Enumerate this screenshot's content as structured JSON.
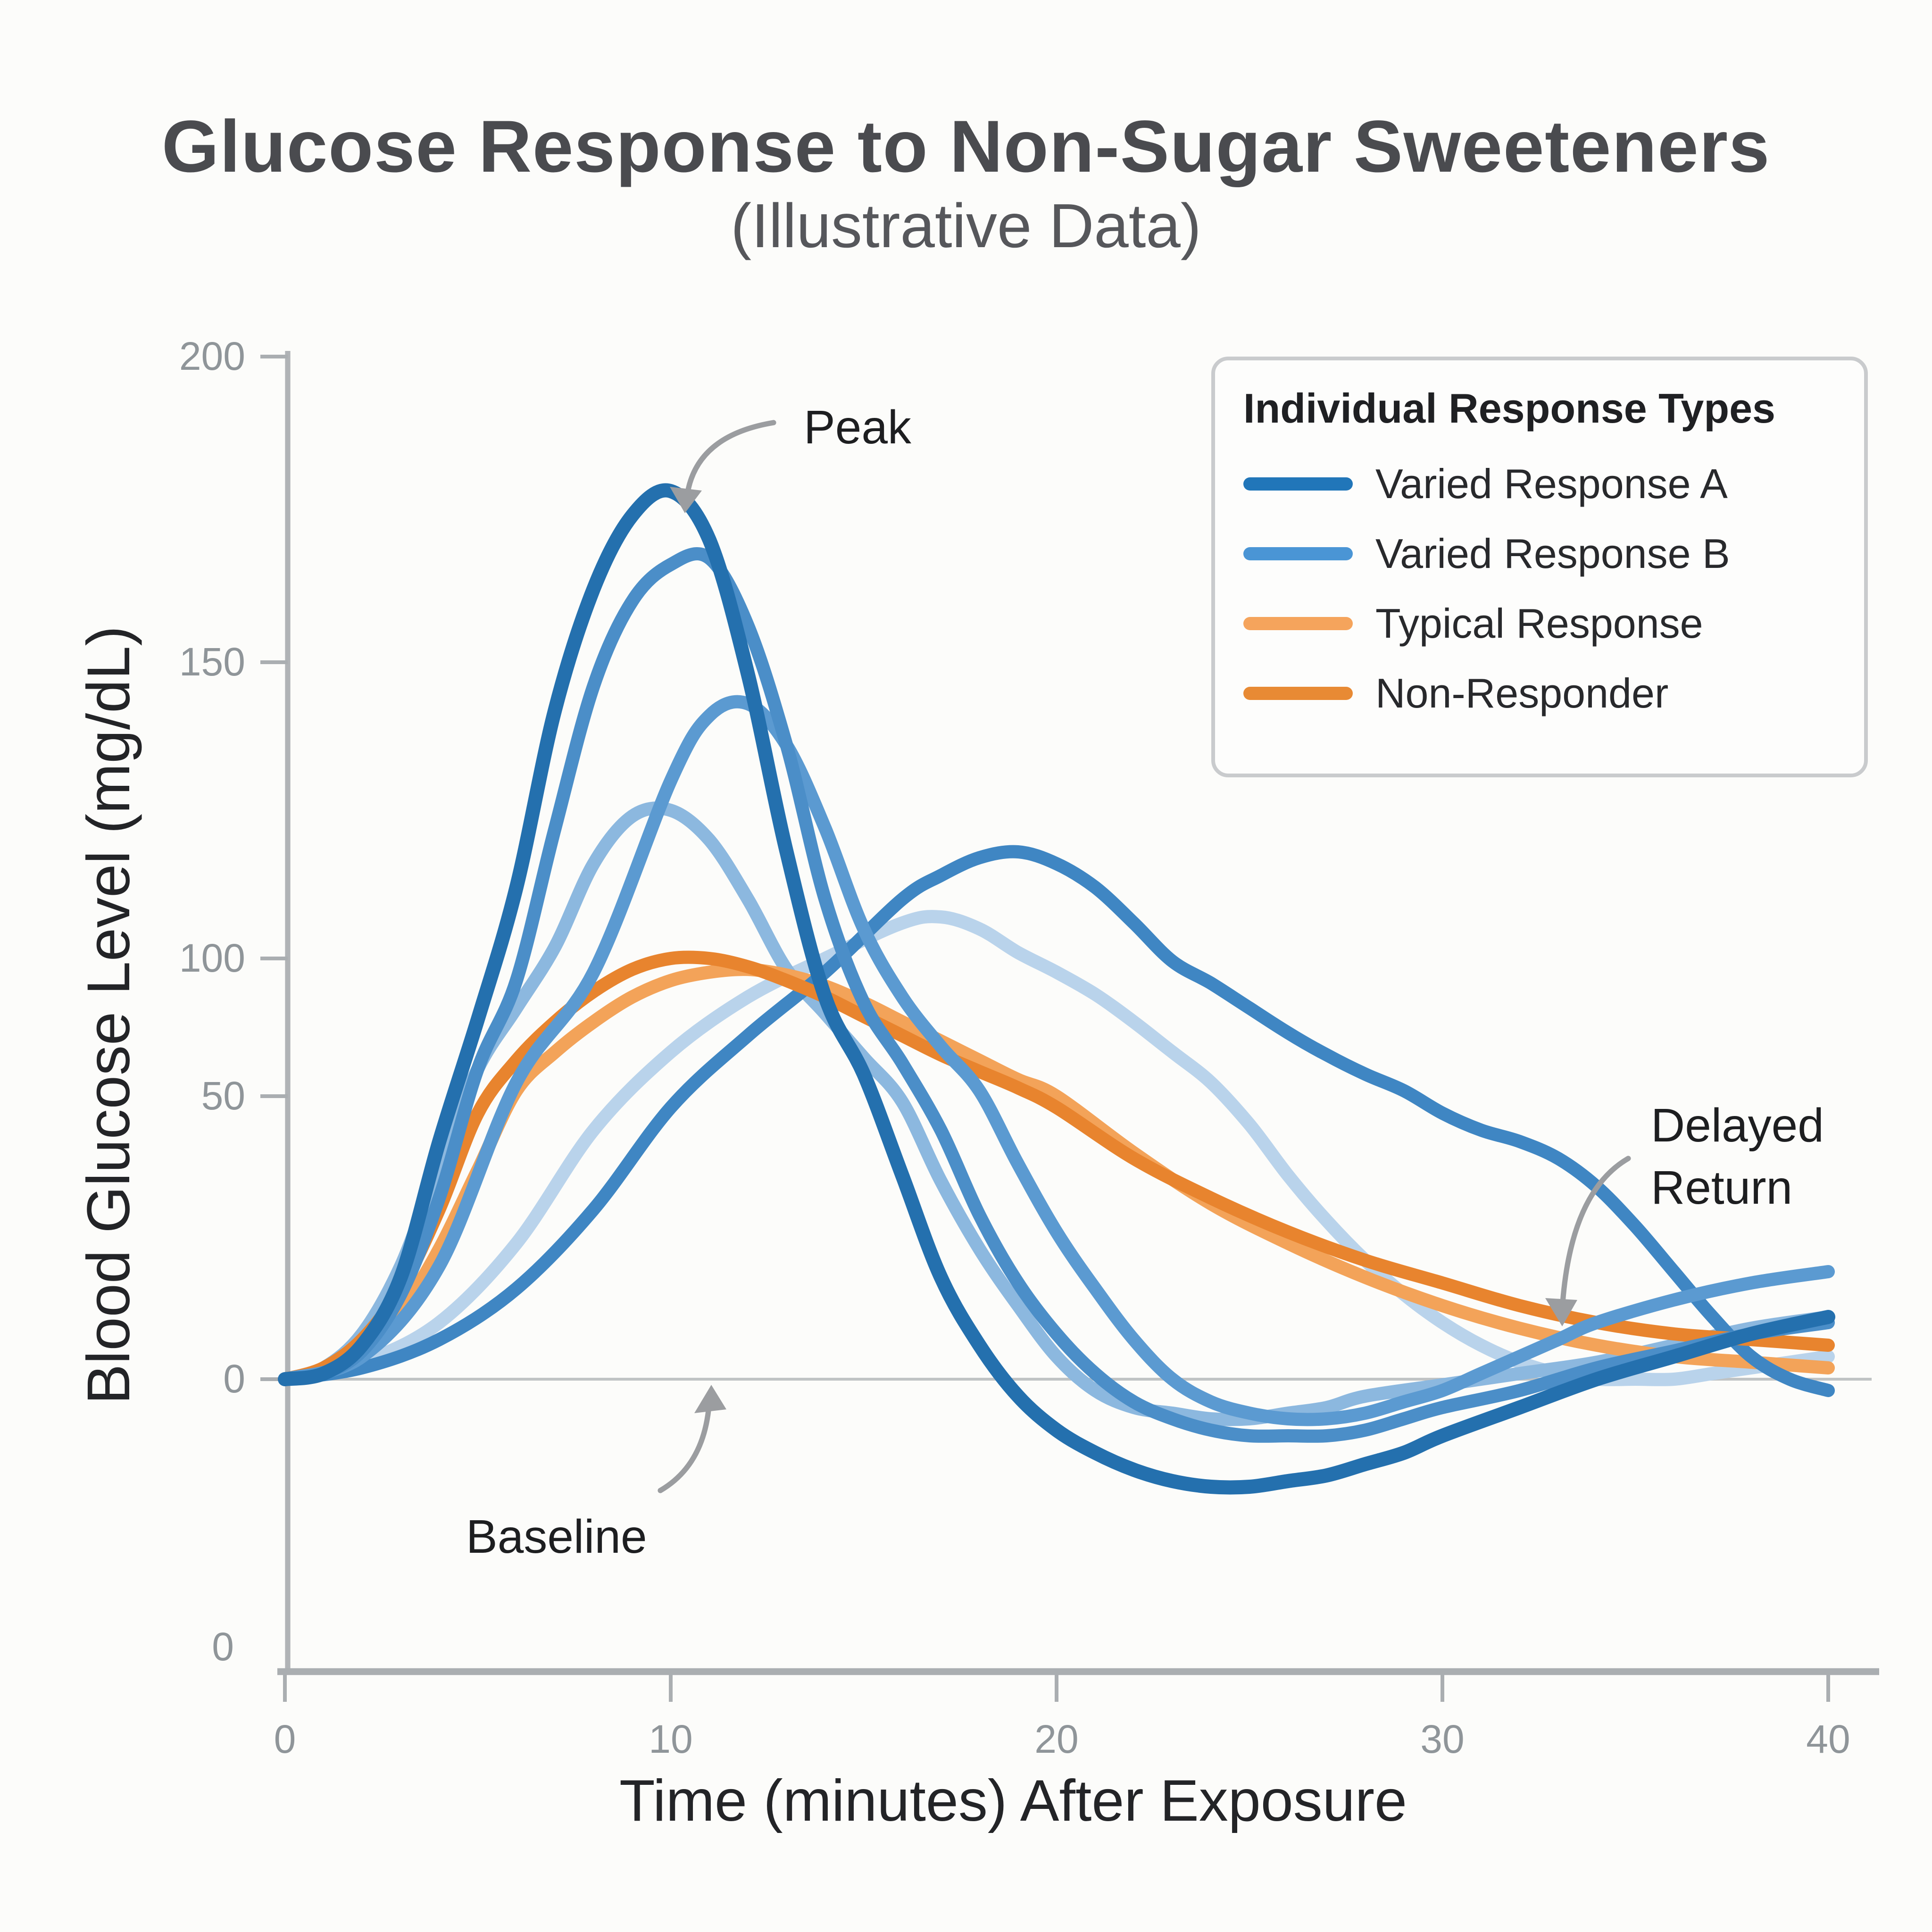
{
  "title": "Glucose Response to Non-Sugar Sweeteners",
  "subtitle": "(Illustrative Data)",
  "axes": {
    "x_label": "Time (minutes) After Exposure",
    "y_label": "Blood Glucose Level (mg/dL)",
    "x_ticks": [
      0,
      10,
      20,
      30,
      40
    ],
    "y_ticks": [
      200,
      150,
      100,
      50,
      0
    ],
    "origin_label": "0"
  },
  "legend": {
    "title": "Individual Response Types",
    "entries": [
      {
        "label": "Varied Response A",
        "color": "#2176b9"
      },
      {
        "label": "Varied Response B",
        "color": "#4a95d5"
      },
      {
        "label": "Typical Response",
        "color": "#f5a45c"
      },
      {
        "label": "Non-Responder",
        "color": "#e88a34"
      }
    ]
  },
  "annotations": {
    "peak": "Peak",
    "baseline": "Baseline",
    "delayed_return": "Delayed Return"
  },
  "chart_data": {
    "type": "line",
    "title": "Glucose Response to Non-Sugar Sweeteners",
    "subtitle": "(Illustrative Data)",
    "xlabel": "Time (minutes) After Exposure",
    "ylabel": "Blood Glucose Level (mg/dL)",
    "x_range": [
      0,
      40
    ],
    "x_ticks": [
      0,
      10,
      20,
      30,
      40
    ],
    "y_ticks": [
      200,
      150,
      100,
      50,
      0
    ],
    "baseline_value": 0,
    "grid": false,
    "legend_position": "top-right",
    "series": [
      {
        "name": "Varied Response B - delayed light curve",
        "legend_group": "Varied Response B",
        "color": "#b9d3eb",
        "width": 7,
        "points": [
          [
            0,
            0
          ],
          [
            2,
            3
          ],
          [
            4,
            10
          ],
          [
            6,
            24
          ],
          [
            8,
            44
          ],
          [
            10,
            66
          ],
          [
            12,
            86
          ],
          [
            14,
            100
          ],
          [
            16,
            106
          ],
          [
            17,
            107
          ],
          [
            18,
            105
          ],
          [
            19,
            101
          ],
          [
            20,
            95
          ],
          [
            21,
            87
          ],
          [
            22,
            77
          ],
          [
            23,
            66
          ],
          [
            24,
            55
          ],
          [
            25,
            45
          ],
          [
            26,
            36
          ],
          [
            27,
            28
          ],
          [
            28,
            21
          ],
          [
            29,
            15
          ],
          [
            30,
            10
          ],
          [
            31,
            6
          ],
          [
            32,
            3
          ],
          [
            33,
            1
          ],
          [
            34,
            0
          ],
          [
            35,
            0
          ],
          [
            36,
            0
          ],
          [
            37,
            1
          ],
          [
            38,
            2
          ],
          [
            39,
            3
          ],
          [
            40,
            4
          ]
        ]
      },
      {
        "name": "Varied Response B - light curve",
        "legend_group": "Varied Response B",
        "color": "#8cb8df",
        "width": 7,
        "points": [
          [
            0,
            0
          ],
          [
            1,
            2
          ],
          [
            2,
            8
          ],
          [
            3,
            20
          ],
          [
            4,
            38
          ],
          [
            5,
            60
          ],
          [
            6,
            82
          ],
          [
            7,
            102
          ],
          [
            8,
            116
          ],
          [
            9,
            124
          ],
          [
            10,
            125
          ],
          [
            11,
            120
          ],
          [
            12,
            110
          ],
          [
            13,
            96
          ],
          [
            14,
            80
          ],
          [
            15,
            64
          ],
          [
            16,
            49
          ],
          [
            17,
            35
          ],
          [
            18,
            23
          ],
          [
            19,
            13
          ],
          [
            20,
            4
          ],
          [
            21,
            -2
          ],
          [
            22,
            -5
          ],
          [
            23,
            -6
          ],
          [
            24,
            -7
          ],
          [
            25,
            -7
          ],
          [
            26,
            -6
          ],
          [
            27,
            -5
          ],
          [
            28,
            -3
          ],
          [
            30,
            -1
          ],
          [
            32,
            1
          ],
          [
            34,
            3
          ],
          [
            36,
            6
          ],
          [
            38,
            9
          ],
          [
            40,
            11
          ]
        ]
      },
      {
        "name": "Typical Response curve",
        "legend_group": "Typical Response",
        "color": "#f3a359",
        "width": 7,
        "points": [
          [
            0,
            0
          ],
          [
            1,
            1
          ],
          [
            2,
            5
          ],
          [
            3,
            12
          ],
          [
            4,
            23
          ],
          [
            5,
            37
          ],
          [
            6,
            52
          ],
          [
            7,
            66
          ],
          [
            8,
            77
          ],
          [
            9,
            86
          ],
          [
            10,
            92
          ],
          [
            11,
            95
          ],
          [
            12,
            96
          ],
          [
            13,
            94
          ],
          [
            14,
            90
          ],
          [
            15,
            84
          ],
          [
            16,
            77
          ],
          [
            17,
            70
          ],
          [
            18,
            63
          ],
          [
            19,
            56
          ],
          [
            20,
            50
          ],
          [
            22,
            40
          ],
          [
            24,
            31
          ],
          [
            26,
            24
          ],
          [
            28,
            18
          ],
          [
            30,
            13
          ],
          [
            32,
            9
          ],
          [
            34,
            6
          ],
          [
            36,
            4
          ],
          [
            38,
            3
          ],
          [
            40,
            2
          ]
        ]
      },
      {
        "name": "Varied Response B - delayed return curve",
        "legend_group": "Varied Response B",
        "color": "#3f86c3",
        "width": 7,
        "points": [
          [
            0,
            0
          ],
          [
            2,
            2
          ],
          [
            4,
            7
          ],
          [
            6,
            16
          ],
          [
            8,
            30
          ],
          [
            10,
            48
          ],
          [
            12,
            72
          ],
          [
            14,
            95
          ],
          [
            16,
            110
          ],
          [
            17,
            114
          ],
          [
            18,
            117
          ],
          [
            19,
            118
          ],
          [
            20,
            116
          ],
          [
            21,
            112
          ],
          [
            22,
            106
          ],
          [
            23,
            99
          ],
          [
            24,
            91
          ],
          [
            25,
            82
          ],
          [
            26,
            73
          ],
          [
            27,
            65
          ],
          [
            28,
            58
          ],
          [
            29,
            52
          ],
          [
            30,
            47
          ],
          [
            31,
            44
          ],
          [
            32,
            42
          ],
          [
            33,
            39
          ],
          [
            34,
            34
          ],
          [
            35,
            27
          ],
          [
            36,
            19
          ],
          [
            37,
            11
          ],
          [
            38,
            4
          ],
          [
            39,
            0
          ],
          [
            40,
            -2
          ]
        ]
      },
      {
        "name": "Non-Responder curve",
        "legend_group": "Non-Responder",
        "color": "#e8842e",
        "width": 7,
        "points": [
          [
            0,
            0
          ],
          [
            1,
            2
          ],
          [
            2,
            7
          ],
          [
            3,
            16
          ],
          [
            4,
            30
          ],
          [
            5,
            47
          ],
          [
            6,
            63
          ],
          [
            7,
            77
          ],
          [
            8,
            88
          ],
          [
            9,
            96
          ],
          [
            10,
            100
          ],
          [
            11,
            100
          ],
          [
            12,
            97
          ],
          [
            13,
            92
          ],
          [
            14,
            86
          ],
          [
            15,
            79
          ],
          [
            16,
            72
          ],
          [
            17,
            65
          ],
          [
            18,
            59
          ],
          [
            19,
            53
          ],
          [
            20,
            48
          ],
          [
            22,
            39
          ],
          [
            24,
            32
          ],
          [
            26,
            26
          ],
          [
            28,
            21
          ],
          [
            30,
            17
          ],
          [
            32,
            13
          ],
          [
            34,
            10
          ],
          [
            36,
            8
          ],
          [
            38,
            7
          ],
          [
            40,
            6
          ]
        ]
      },
      {
        "name": "Varied Response B - medium curve",
        "legend_group": "Varied Response B",
        "color": "#5b9ad1",
        "width": 7,
        "points": [
          [
            0,
            0
          ],
          [
            2,
            4
          ],
          [
            4,
            20
          ],
          [
            6,
            55
          ],
          [
            8,
            95
          ],
          [
            10,
            130
          ],
          [
            11,
            141
          ],
          [
            12,
            143
          ],
          [
            13,
            136
          ],
          [
            14,
            122
          ],
          [
            15,
            105
          ],
          [
            16,
            86
          ],
          [
            17,
            68
          ],
          [
            18,
            52
          ],
          [
            19,
            38
          ],
          [
            20,
            26
          ],
          [
            21,
            16
          ],
          [
            22,
            7
          ],
          [
            23,
            0
          ],
          [
            24,
            -4
          ],
          [
            25,
            -6
          ],
          [
            26,
            -7
          ],
          [
            27,
            -7
          ],
          [
            28,
            -6
          ],
          [
            29,
            -4
          ],
          [
            30,
            -2
          ],
          [
            31,
            1
          ],
          [
            32,
            4
          ],
          [
            33,
            7
          ],
          [
            34,
            10
          ],
          [
            36,
            14
          ],
          [
            38,
            17
          ],
          [
            40,
            19
          ]
        ]
      },
      {
        "name": "Varied Response A - second curve",
        "legend_group": "Varied Response A",
        "color": "#4b8ec8",
        "width": 7,
        "points": [
          [
            0,
            0
          ],
          [
            1,
            1
          ],
          [
            2,
            5
          ],
          [
            3,
            15
          ],
          [
            4,
            32
          ],
          [
            5,
            60
          ],
          [
            6,
            92
          ],
          [
            7,
            122
          ],
          [
            8,
            146
          ],
          [
            9,
            160
          ],
          [
            10,
            166
          ],
          [
            11,
            167
          ],
          [
            12,
            156
          ],
          [
            13,
            136
          ],
          [
            14,
            110
          ],
          [
            15,
            84
          ],
          [
            16,
            62
          ],
          [
            17,
            44
          ],
          [
            18,
            29
          ],
          [
            19,
            17
          ],
          [
            20,
            8
          ],
          [
            21,
            1
          ],
          [
            22,
            -4
          ],
          [
            23,
            -7
          ],
          [
            24,
            -9
          ],
          [
            25,
            -10
          ],
          [
            26,
            -10
          ],
          [
            27,
            -10
          ],
          [
            28,
            -9
          ],
          [
            29,
            -7
          ],
          [
            30,
            -5
          ],
          [
            32,
            -2
          ],
          [
            34,
            2
          ],
          [
            36,
            5
          ],
          [
            38,
            8
          ],
          [
            40,
            10
          ]
        ]
      },
      {
        "name": "Varied Response A - peak curve",
        "legend_group": "Varied Response A",
        "color": "#2470ae",
        "width": 7.5,
        "points": [
          [
            0,
            0
          ],
          [
            1,
            1
          ],
          [
            2,
            6
          ],
          [
            3,
            18
          ],
          [
            4,
            42
          ],
          [
            5,
            78
          ],
          [
            6,
            112
          ],
          [
            7,
            142
          ],
          [
            8,
            162
          ],
          [
            9,
            174
          ],
          [
            10,
            178
          ],
          [
            11,
            170
          ],
          [
            12,
            148
          ],
          [
            13,
            118
          ],
          [
            14,
            86
          ],
          [
            15,
            58
          ],
          [
            16,
            36
          ],
          [
            17,
            18
          ],
          [
            18,
            6
          ],
          [
            19,
            -3
          ],
          [
            20,
            -9
          ],
          [
            21,
            -13
          ],
          [
            22,
            -16
          ],
          [
            23,
            -18
          ],
          [
            24,
            -19
          ],
          [
            25,
            -19
          ],
          [
            26,
            -18
          ],
          [
            27,
            -17
          ],
          [
            28,
            -15
          ],
          [
            29,
            -13
          ],
          [
            30,
            -10
          ],
          [
            32,
            -5
          ],
          [
            34,
            0
          ],
          [
            36,
            4
          ],
          [
            38,
            8
          ],
          [
            40,
            11
          ]
        ]
      }
    ]
  }
}
